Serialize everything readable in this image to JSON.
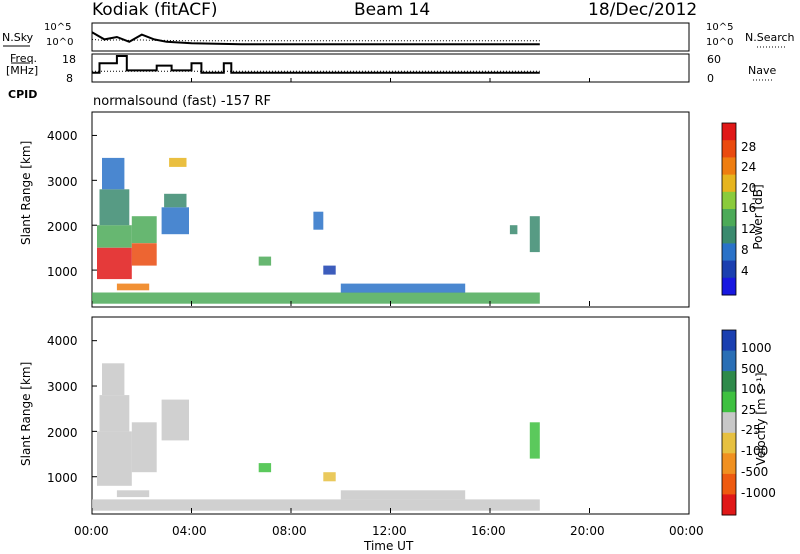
{
  "header": {
    "title": "Kodiak (fitACF)",
    "beam": "Beam 14",
    "date": "18/Dec/2012"
  },
  "top_panels": {
    "nsky_label": "N.Sky",
    "nsky_ticks": [
      "10^5",
      "10^0"
    ],
    "nsearch_label": "N.Search",
    "nsearch_ticks": [
      "10^5",
      "10^0"
    ],
    "freq_label": "Freq.",
    "freq_unit": "[MHz]",
    "freq_ticks": [
      "18",
      "8"
    ],
    "nave_label": "Nave",
    "nave_ticks": [
      "60",
      "0"
    ],
    "cpid_label": "CPID",
    "cpid_text": "normalsound (fast) -157 RF"
  },
  "colors": {
    "power": [
      "#1818e0",
      "#1a3fb0",
      "#2a72c8",
      "#3a8a6e",
      "#4caa58",
      "#8acb3c",
      "#e6b41e",
      "#ee7d10",
      "#ea4a0e",
      "#e01818"
    ],
    "velocity": [
      "#e01818",
      "#ee5a10",
      "#f09020",
      "#e6c040",
      "#c8c8c8",
      "#3ec040",
      "#2e8a4a",
      "#2a6fb5",
      "#1a3fb0"
    ]
  },
  "chart_data": [
    {
      "type": "line",
      "name": "N.Sky / N.Search",
      "x_unit": "hours UT",
      "x": [
        0,
        0.5,
        1,
        1.5,
        2,
        2.5,
        3,
        4,
        6,
        8,
        10,
        12,
        14,
        16,
        18
      ],
      "series": [
        {
          "name": "N.Sky",
          "values": [
            3.5,
            2.0,
            2.5,
            1.5,
            3.0,
            2.0,
            1.5,
            1.2,
            1.0,
            1.0,
            1.0,
            1.0,
            1.0,
            1.0,
            1.0
          ]
        },
        {
          "name": "N.Search",
          "values": [
            2.0,
            1.8,
            1.9,
            1.8,
            1.9,
            1.8,
            1.8,
            1.7,
            1.7,
            1.7,
            1.7,
            1.7,
            1.7,
            1.7,
            1.7
          ]
        }
      ],
      "yticks": [
        "10^0",
        "10^5"
      ]
    },
    {
      "type": "line",
      "name": "Freq. / Nave",
      "x_unit": "hours UT",
      "x": [
        0,
        0.3,
        0.8,
        1.0,
        1.4,
        1.8,
        2.6,
        3.2,
        4.0,
        4.4,
        5.3,
        5.6,
        6.0,
        8.0,
        10.0,
        12.0,
        14.0,
        16.0,
        18.0
      ],
      "series": [
        {
          "name": "Freq. [MHz]",
          "values": [
            11,
            15,
            15,
            18,
            12,
            12,
            14,
            12,
            15,
            11,
            15,
            11,
            11,
            11,
            11,
            11,
            11,
            11,
            11
          ]
        },
        {
          "name": "Nave",
          "values": [
            22,
            22,
            22,
            22,
            22,
            22,
            22,
            22,
            22,
            22,
            22,
            22,
            22,
            22,
            22,
            22,
            22,
            22,
            22
          ]
        }
      ],
      "yticks_left": [
        "8",
        "18"
      ],
      "yticks_right": [
        "0",
        "60"
      ]
    },
    {
      "type": "heatmap",
      "name": "Power",
      "x_range": [
        0,
        24
      ],
      "y_range": [
        200,
        4500
      ],
      "ylabel": "Slant Range [km]",
      "xticks": [
        "00:00",
        "04:00",
        "08:00",
        "12:00",
        "16:00",
        "20:00",
        "00:00"
      ],
      "yticks": [
        "1000",
        "2000",
        "3000",
        "4000"
      ],
      "colorbar_label": "Power [dB]",
      "colorbar_ticks": [
        "4",
        "8",
        "12",
        "16",
        "20",
        "24",
        "28"
      ],
      "colorbar_range": [
        0,
        30
      ],
      "clusters": [
        {
          "t": [
            0.2,
            1.6
          ],
          "r": [
            800,
            1500
          ],
          "v": 27
        },
        {
          "t": [
            0.2,
            1.6
          ],
          "r": [
            1500,
            2000
          ],
          "v": 14
        },
        {
          "t": [
            0.3,
            1.5
          ],
          "r": [
            2000,
            2800
          ],
          "v": 9
        },
        {
          "t": [
            0.4,
            1.3
          ],
          "r": [
            2800,
            3500
          ],
          "v": 6
        },
        {
          "t": [
            1.6,
            2.6
          ],
          "r": [
            1100,
            1600
          ],
          "v": 24
        },
        {
          "t": [
            1.6,
            2.6
          ],
          "r": [
            1600,
            2200
          ],
          "v": 12
        },
        {
          "t": [
            2.8,
            3.9
          ],
          "r": [
            1800,
            2400
          ],
          "v": 8
        },
        {
          "t": [
            2.9,
            3.8
          ],
          "r": [
            2400,
            2700
          ],
          "v": 10
        },
        {
          "t": [
            1.0,
            2.3
          ],
          "r": [
            550,
            700
          ],
          "v": 22
        },
        {
          "t": [
            3.1,
            3.8
          ],
          "r": [
            3300,
            3500
          ],
          "v": 20
        },
        {
          "t": [
            6.7,
            7.2
          ],
          "r": [
            1100,
            1300
          ],
          "v": 13
        },
        {
          "t": [
            8.9,
            9.3
          ],
          "r": [
            1900,
            2300
          ],
          "v": 7
        },
        {
          "t": [
            9.3,
            9.8
          ],
          "r": [
            900,
            1100
          ],
          "v": 5
        },
        {
          "t": [
            16.8,
            17.1
          ],
          "r": [
            1800,
            2000
          ],
          "v": 10
        },
        {
          "t": [
            17.6,
            18.0
          ],
          "r": [
            1400,
            2200
          ],
          "v": 11
        },
        {
          "t": [
            0.0,
            18.0
          ],
          "r": [
            250,
            500
          ],
          "v": 12
        },
        {
          "t": [
            10.0,
            15.0
          ],
          "r": [
            500,
            700
          ],
          "v": 8
        }
      ]
    },
    {
      "type": "heatmap",
      "name": "Velocity",
      "x_range": [
        0,
        24
      ],
      "y_range": [
        200,
        4500
      ],
      "ylabel": "Slant Range [km]",
      "xlabel": "Time UT",
      "xticks": [
        "00:00",
        "04:00",
        "08:00",
        "12:00",
        "16:00",
        "20:00",
        "00:00"
      ],
      "yticks": [
        "1000",
        "2000",
        "3000",
        "4000"
      ],
      "colorbar_label": "Velocity [m s⁻¹]",
      "colorbar_ticks": [
        "1000",
        "500",
        "100",
        "25",
        "-25",
        "-100",
        "-500",
        "-1000"
      ],
      "colorbar_range": [
        -1000,
        1000
      ],
      "clusters": [
        {
          "t": [
            0.2,
            1.6
          ],
          "r": [
            800,
            2000
          ],
          "v": 0
        },
        {
          "t": [
            0.3,
            1.5
          ],
          "r": [
            2000,
            2800
          ],
          "v": 0
        },
        {
          "t": [
            0.4,
            1.3
          ],
          "r": [
            2800,
            3500
          ],
          "v": 40
        },
        {
          "t": [
            1.6,
            2.6
          ],
          "r": [
            1100,
            2200
          ],
          "v": 0
        },
        {
          "t": [
            2.8,
            3.9
          ],
          "r": [
            1800,
            2700
          ],
          "v": 0
        },
        {
          "t": [
            1.0,
            2.3
          ],
          "r": [
            550,
            700
          ],
          "v": 60
        },
        {
          "t": [
            6.7,
            7.2
          ],
          "r": [
            1100,
            1300
          ],
          "v": 200
        },
        {
          "t": [
            9.3,
            9.8
          ],
          "r": [
            900,
            1100
          ],
          "v": -150
        },
        {
          "t": [
            17.6,
            18.0
          ],
          "r": [
            1400,
            2200
          ],
          "v": 120
        },
        {
          "t": [
            0.0,
            18.0
          ],
          "r": [
            250,
            500
          ],
          "v": -80
        },
        {
          "t": [
            10.0,
            15.0
          ],
          "r": [
            500,
            700
          ],
          "v": 50
        }
      ]
    }
  ]
}
